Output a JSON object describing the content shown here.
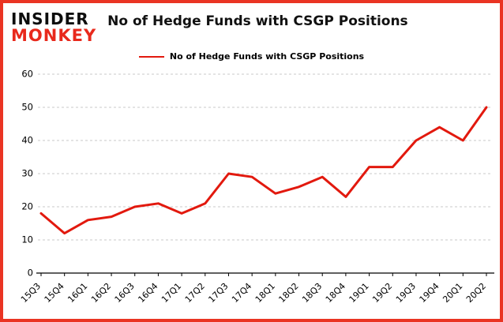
{
  "brand": {
    "line1": "INSIDER",
    "line2": "MONKEY"
  },
  "header": {
    "title": "No of Hedge Funds with CSGP Positions"
  },
  "legend": {
    "label": "No of Hedge Funds with CSGP Positions"
  },
  "colors": {
    "line": "#e2190e",
    "border": "#ea3423",
    "logo_red": "#e8291c",
    "grid": "#c9c9c9",
    "axis": "#000000"
  },
  "chart_data": {
    "type": "line",
    "title": "No of Hedge Funds with CSGP Positions",
    "categories": [
      "15Q3",
      "15Q4",
      "16Q1",
      "16Q2",
      "16Q3",
      "16Q4",
      "17Q1",
      "17Q2",
      "17Q3",
      "17Q4",
      "18Q1",
      "18Q2",
      "18Q3",
      "18Q4",
      "19Q1",
      "19Q2",
      "19Q3",
      "19Q4",
      "20Q1",
      "20Q2"
    ],
    "values": [
      18,
      12,
      16,
      17,
      20,
      21,
      18,
      21,
      30,
      29,
      24,
      26,
      29,
      23,
      32,
      32,
      40,
      44,
      40,
      50
    ],
    "xlabel": "",
    "ylabel": "",
    "ylim": [
      0,
      60
    ],
    "yticks": [
      0,
      10,
      20,
      30,
      40,
      50,
      60
    ],
    "grid": true,
    "grid_style": "dashed",
    "legend_position": "top",
    "series_name": "No of Hedge Funds with CSGP Positions",
    "line_color": "#e2190e"
  }
}
